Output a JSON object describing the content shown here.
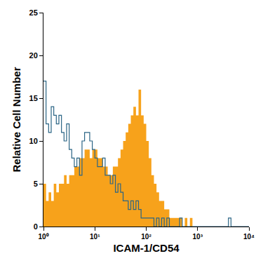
{
  "chart_data": {
    "type": "histogram",
    "x_label": "ICAM-1/CD54",
    "y_label": "Relative Cell Number",
    "log": "x",
    "grid": false,
    "xlim": [
      1,
      10000
    ],
    "ylim": [
      0,
      25
    ],
    "xticks": [
      {
        "value": 1,
        "label": "10⁰"
      },
      {
        "value": 10,
        "label": "10¹"
      },
      {
        "value": 100,
        "label": "10²"
      },
      {
        "value": 1000,
        "label": "10³"
      },
      {
        "value": 10000,
        "label": "10⁴"
      }
    ],
    "yticks": [
      0,
      5,
      10,
      15,
      20,
      25
    ],
    "bins": [
      1,
      1.122,
      1.259,
      1.413,
      1.585,
      1.778,
      1.995,
      2.239,
      2.512,
      2.818,
      3.162,
      3.548,
      3.981,
      4.467,
      5.012,
      5.623,
      6.31,
      7.079,
      7.943,
      8.913,
      10,
      11.22,
      12.59,
      14.13,
      15.85,
      17.78,
      19.95,
      22.39,
      25.12,
      28.18,
      31.62,
      35.48,
      39.81,
      44.67,
      50.12,
      56.23,
      63.1,
      70.79,
      79.43,
      89.13,
      100,
      112.2,
      125.9,
      141.3,
      158.5,
      177.8,
      199.5,
      223.9,
      251.2,
      281.8,
      316.2,
      354.8,
      398.1,
      446.7,
      501.2,
      562.3,
      631,
      707.9,
      794.3,
      891.3,
      1000,
      1122,
      1259,
      1413,
      1585,
      1778,
      1995,
      2239,
      2512,
      2818,
      3162,
      3548,
      3981,
      4467,
      5012,
      5623,
      6310,
      7079,
      7943,
      8913,
      10000
    ],
    "series": [
      {
        "color": "#f7a21b",
        "fill": true,
        "values": [
          5,
          3,
          4,
          3,
          5,
          4,
          5,
          5,
          6,
          5,
          6,
          6,
          7,
          7,
          8,
          8,
          9,
          9,
          8,
          9,
          9,
          8,
          8,
          7,
          7,
          6,
          6,
          7,
          7,
          8,
          9,
          10,
          11,
          12,
          13,
          14,
          13,
          16,
          13,
          12,
          10,
          8,
          6,
          5,
          4,
          3,
          3,
          2,
          2,
          1,
          1,
          1,
          1,
          1,
          0,
          1,
          0,
          1,
          0,
          0,
          0,
          0,
          0,
          0,
          0,
          0,
          0,
          0,
          0,
          0,
          0,
          0,
          0,
          0,
          0,
          0,
          0,
          0,
          0,
          0
        ]
      },
      {
        "color": "#2b6585",
        "fill": false,
        "values": [
          17,
          12,
          11,
          14,
          13,
          12,
          13,
          11,
          10,
          12,
          9,
          8,
          7,
          8,
          6,
          10,
          11,
          11,
          10,
          9,
          8,
          7,
          7,
          8,
          6,
          6,
          5,
          6,
          4,
          5,
          4,
          3,
          3,
          2,
          3,
          2,
          3,
          2,
          1,
          1,
          1,
          1,
          1,
          0,
          1,
          0,
          1,
          0,
          1,
          0,
          0,
          0,
          0,
          1,
          0,
          0,
          0,
          0,
          0,
          0,
          0,
          0,
          0,
          0,
          0,
          0,
          0,
          0,
          0,
          0,
          0,
          0,
          1,
          0,
          0,
          0,
          0,
          0,
          0,
          0
        ]
      }
    ]
  }
}
